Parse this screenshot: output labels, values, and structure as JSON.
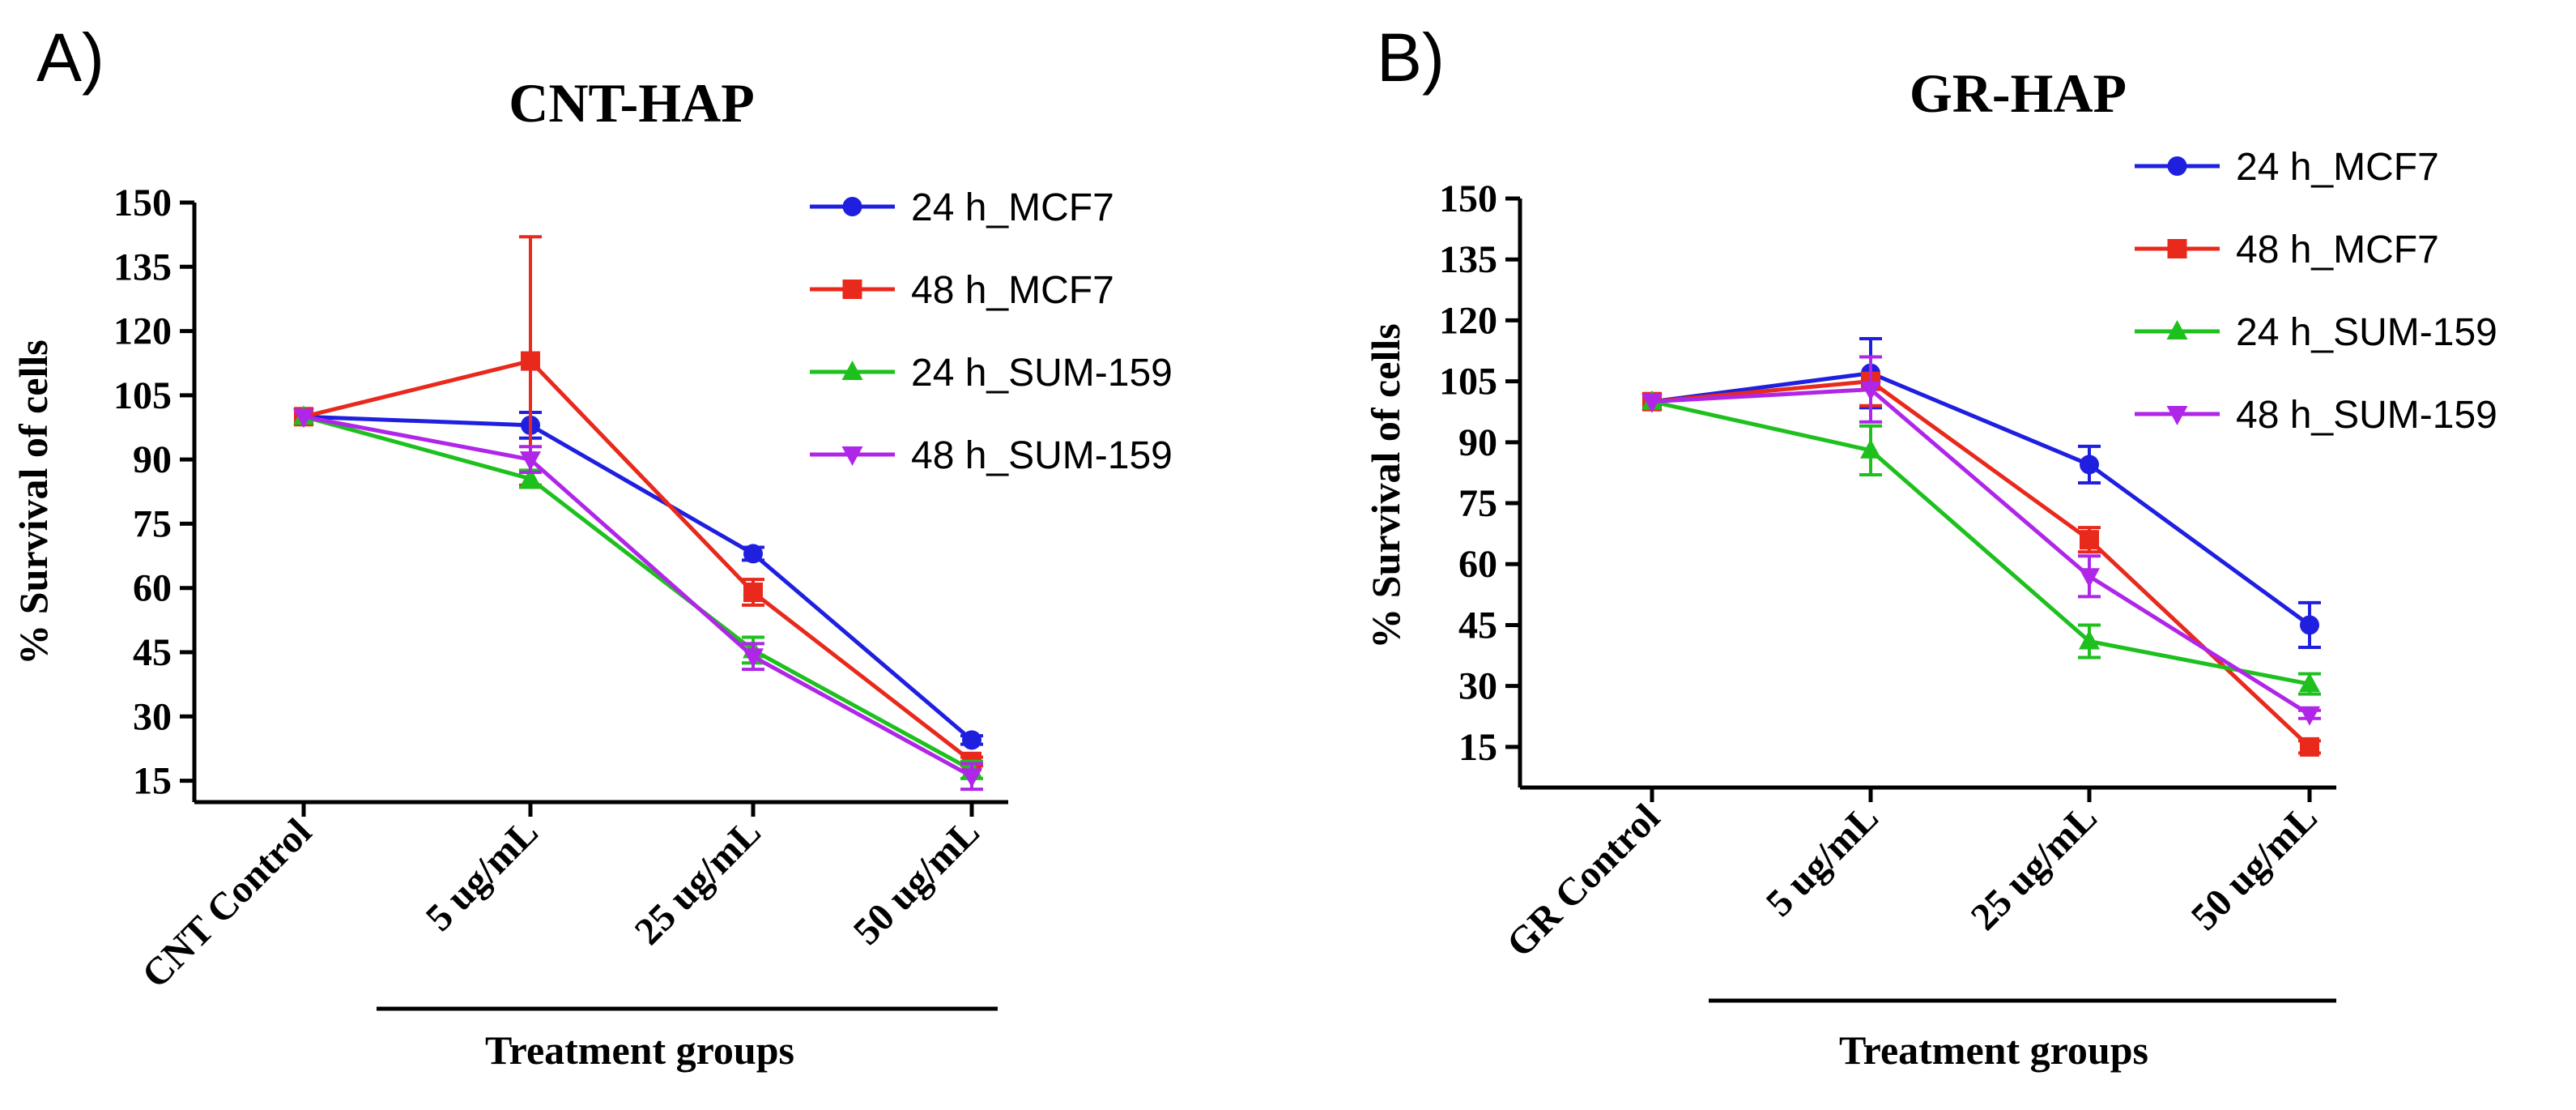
{
  "chart_data": [
    {
      "panel_label": "A)",
      "type": "line",
      "title": "CNT-HAP",
      "ylabel": "% Survival of cells",
      "xlabel": "Treatment groups",
      "categories": [
        "CNT Control",
        "5 ug/mL",
        "25 ug/mL",
        "50 ug/mL"
      ],
      "y_ticks": [
        15,
        30,
        45,
        60,
        75,
        90,
        105,
        120,
        135,
        150
      ],
      "ylim": [
        10,
        150
      ],
      "legend_position": "top-right",
      "series": [
        {
          "name": "24 h_MCF7",
          "color": "#1f1fe0",
          "marker": "circle",
          "values": [
            100,
            98,
            68,
            24.5
          ],
          "errors": [
            0,
            3,
            1.5,
            1
          ]
        },
        {
          "name": "48 h_MCF7",
          "color": "#e8291c",
          "marker": "square",
          "values": [
            100,
            113,
            59,
            19.5
          ],
          "errors": [
            0,
            29,
            3,
            1
          ]
        },
        {
          "name": "24 h_SUM-159",
          "color": "#1ec01e",
          "marker": "triangle-up",
          "values": [
            100,
            85.5,
            45.5,
            17.5
          ],
          "errors": [
            0,
            2,
            3,
            2
          ]
        },
        {
          "name": "48 h_SUM-159",
          "color": "#b026e8",
          "marker": "triangle-down",
          "values": [
            100,
            90,
            44,
            16
          ],
          "errors": [
            0,
            3,
            3,
            3
          ]
        }
      ]
    },
    {
      "panel_label": "B)",
      "type": "line",
      "title": "GR-HAP",
      "ylabel": "% Survival of cells",
      "xlabel": "Treatment groups",
      "categories": [
        "GR Control",
        "5 ug/mL",
        "25 ug/mL",
        "50 ug/mL"
      ],
      "y_ticks": [
        15,
        30,
        45,
        60,
        75,
        90,
        105,
        120,
        135,
        150
      ],
      "ylim": [
        5,
        150
      ],
      "legend_position": "top-right",
      "series": [
        {
          "name": "24 h_MCF7",
          "color": "#1f1fe0",
          "marker": "circle",
          "values": [
            100,
            107,
            84.5,
            45
          ],
          "errors": [
            0,
            8.5,
            4.5,
            5.5
          ]
        },
        {
          "name": "48 h_MCF7",
          "color": "#e8291c",
          "marker": "square",
          "values": [
            100,
            105,
            66,
            15
          ],
          "errors": [
            0,
            6,
            3,
            1.5
          ]
        },
        {
          "name": "24 h_SUM-159",
          "color": "#1ec01e",
          "marker": "triangle-up",
          "values": [
            100,
            88,
            41,
            30.5
          ],
          "errors": [
            0,
            6,
            4,
            2.5
          ]
        },
        {
          "name": "48 h_SUM-159",
          "color": "#b026e8",
          "marker": "triangle-down",
          "values": [
            100,
            103,
            57,
            23
          ],
          "errors": [
            0,
            8,
            5,
            1
          ]
        }
      ]
    }
  ]
}
